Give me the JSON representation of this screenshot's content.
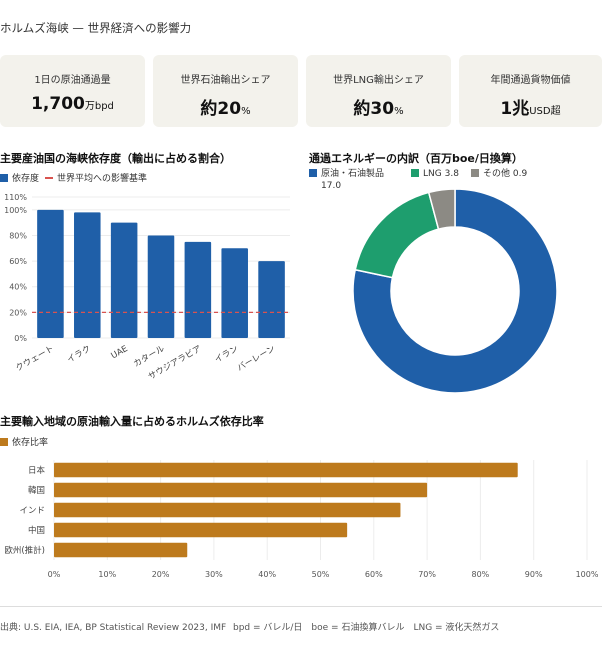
{
  "title": "ホルムズ海峡 — 世界経済への影響力",
  "kpis": [
    {
      "label": "1日の原油通過量",
      "value": "1,700",
      "unit": "万bpd"
    },
    {
      "label": "世界石油輸出シェア",
      "value": "約20",
      "unit": "%"
    },
    {
      "label": "世界LNG輸出シェア",
      "value": "約30",
      "unit": "%"
    },
    {
      "label": "年間通過貨物価値",
      "value": "1兆",
      "unit": "USD超"
    }
  ],
  "colors": {
    "blue": "#1f5fa8",
    "green": "#1e9e6e",
    "gray": "#8c8a84",
    "orange": "#bd7a1d",
    "red": "#d9534f"
  },
  "chart_data": [
    {
      "type": "bar",
      "title": "主要産油国の海峡依存度（輸出に占める割合）",
      "legend": [
        {
          "label": "依存度",
          "color": "#1f5fa8"
        },
        {
          "label": "世界平均への影響基準",
          "color": "#d9534f"
        }
      ],
      "categories": [
        "クウェート",
        "イラク",
        "UAE",
        "カタール",
        "サウジアラビア",
        "イラン",
        "バーレーン"
      ],
      "values": [
        100,
        98,
        90,
        80,
        75,
        70,
        60
      ],
      "reference_line": 20,
      "ylim": [
        0,
        110
      ],
      "yticks": [
        0,
        20,
        40,
        60,
        80,
        100,
        110
      ],
      "tick_suffix": "%"
    },
    {
      "type": "pie",
      "title": "通過エネルギーの内訳（百万boe/日換算）",
      "legend_position": "top",
      "slices": [
        {
          "label": "原油・石油製品",
          "value": 17.0,
          "value_label": "17.0",
          "color": "#1f5fa8"
        },
        {
          "label": "LNG",
          "value": 3.8,
          "value_label": "3.8",
          "color": "#1e9e6e"
        },
        {
          "label": "その他",
          "value": 0.9,
          "value_label": "0.9",
          "color": "#8c8a84"
        }
      ]
    },
    {
      "type": "bar",
      "orientation": "horizontal",
      "title": "主要輸入地域の原油輸入量に占めるホルムズ依存比率",
      "legend": [
        {
          "label": "依存比率",
          "color": "#bd7a1d"
        }
      ],
      "categories": [
        "日本",
        "韓国",
        "インド",
        "中国",
        "欧州(推計)"
      ],
      "values": [
        87,
        70,
        65,
        55,
        25
      ],
      "xlim": [
        0,
        100
      ],
      "xticks": [
        0,
        10,
        20,
        30,
        40,
        50,
        60,
        70,
        80,
        90,
        100
      ],
      "tick_suffix": "%"
    }
  ],
  "footer": {
    "source": "出典: U.S. EIA, IEA, BP Statistical Review 2023, IMF",
    "notes": "bpd = バレル/日　boe = 石油換算バレル　LNG = 液化天然ガス"
  }
}
